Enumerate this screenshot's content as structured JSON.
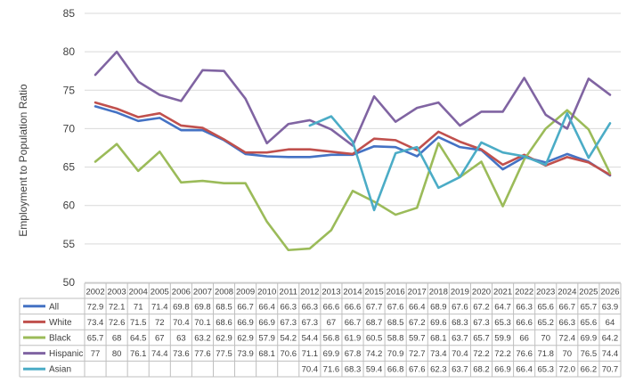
{
  "chart_data": {
    "type": "line",
    "ylabel": "Employment to Population Ratio",
    "ylim": [
      50,
      85
    ],
    "yticks": [
      50,
      55,
      60,
      65,
      70,
      75,
      80,
      85
    ],
    "grid": true,
    "legend_placement": "data-table",
    "categories": [
      "2002",
      "2003",
      "2004",
      "2005",
      "2006",
      "2007",
      "2008",
      "2009",
      "2010",
      "2011",
      "2012",
      "2013",
      "2014",
      "2015",
      "2016",
      "2017",
      "2018",
      "2019",
      "2020",
      "2021",
      "2022",
      "2023",
      "2024",
      "2025",
      "2026"
    ],
    "series": [
      {
        "name": "All",
        "color": "#4472C4",
        "values": [
          72.9,
          72.1,
          71,
          71.4,
          69.8,
          69.8,
          68.5,
          66.7,
          66.4,
          66.3,
          66.3,
          66.6,
          66.6,
          67.7,
          67.6,
          66.4,
          68.9,
          67.6,
          67.2,
          64.7,
          66.3,
          65.6,
          66.7,
          65.7,
          63.9
        ]
      },
      {
        "name": "White",
        "color": "#C0504D",
        "values": [
          73.4,
          72.6,
          71.5,
          72,
          70.4,
          70.1,
          68.6,
          66.9,
          66.9,
          67.3,
          67.3,
          67,
          66.7,
          68.7,
          68.5,
          67.2,
          69.6,
          68.3,
          67.3,
          65.3,
          66.6,
          65.2,
          66.3,
          65.6,
          64
        ]
      },
      {
        "name": "Black",
        "color": "#9BBB59",
        "values": [
          65.7,
          68,
          64.5,
          67,
          63,
          63.2,
          62.9,
          62.9,
          57.9,
          54.2,
          54.4,
          56.8,
          61.9,
          60.5,
          58.8,
          59.7,
          68.1,
          63.7,
          65.7,
          59.9,
          66,
          70,
          72.4,
          69.9,
          64.2
        ]
      },
      {
        "name": "Hispanic",
        "color": "#8064A2",
        "values": [
          77,
          80,
          76.1,
          74.4,
          73.6,
          77.6,
          77.5,
          73.9,
          68.1,
          70.6,
          71.1,
          69.9,
          67.8,
          74.2,
          70.9,
          72.7,
          73.4,
          70.4,
          72.2,
          72.2,
          76.6,
          71.8,
          70,
          76.5,
          74.4
        ]
      },
      {
        "name": "Asian",
        "color": "#4BACC6",
        "values": [
          null,
          null,
          null,
          null,
          null,
          null,
          null,
          null,
          null,
          null,
          70.4,
          71.6,
          68.3,
          59.4,
          66.8,
          67.6,
          62.3,
          63.7,
          68.2,
          66.9,
          66.4,
          65.3,
          72.0,
          66.2,
          70.7
        ]
      }
    ],
    "table_values_display": [
      [
        "72.9",
        "72.1",
        "71",
        "71.4",
        "69.8",
        "69.8",
        "68.5",
        "66.7",
        "66.4",
        "66.3",
        "66.3",
        "66.6",
        "66.6",
        "67.7",
        "67.6",
        "66.4",
        "68.9",
        "67.6",
        "67.2",
        "64.7",
        "66.3",
        "65.6",
        "66.7",
        "65.7",
        "63.9"
      ],
      [
        "73.4",
        "72.6",
        "71.5",
        "72",
        "70.4",
        "70.1",
        "68.6",
        "66.9",
        "66.9",
        "67.3",
        "67.3",
        "67",
        "66.7",
        "68.7",
        "68.5",
        "67.2",
        "69.6",
        "68.3",
        "67.3",
        "65.3",
        "66.6",
        "65.2",
        "66.3",
        "65.6",
        "64"
      ],
      [
        "65.7",
        "68",
        "64.5",
        "67",
        "63",
        "63.2",
        "62.9",
        "62.9",
        "57.9",
        "54.2",
        "54.4",
        "56.8",
        "61.9",
        "60.5",
        "58.8",
        "59.7",
        "68.1",
        "63.7",
        "65.7",
        "59.9",
        "66",
        "70",
        "72.4",
        "69.9",
        "64.2"
      ],
      [
        "77",
        "80",
        "76.1",
        "74.4",
        "73.6",
        "77.6",
        "77.5",
        "73.9",
        "68.1",
        "70.6",
        "71.1",
        "69.9",
        "67.8",
        "74.2",
        "70.9",
        "72.7",
        "73.4",
        "70.4",
        "72.2",
        "72.2",
        "76.6",
        "71.8",
        "70",
        "76.5",
        "74.4"
      ],
      [
        "",
        "",
        "",
        "",
        "",
        "",
        "",
        "",
        "",
        "",
        "70.4",
        "71.6",
        "68.3",
        "59.4",
        "66.8",
        "67.6",
        "62.3",
        "63.7",
        "68.2",
        "66.9",
        "66.4",
        "65.3",
        "72.0",
        "66.2",
        "70.7"
      ]
    ]
  }
}
